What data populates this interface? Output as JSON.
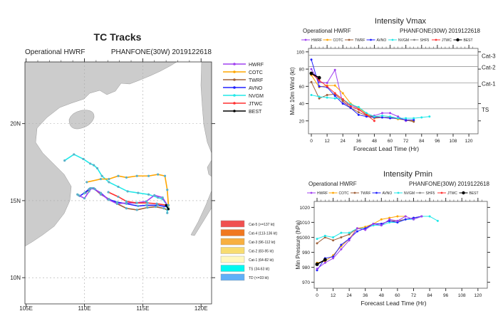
{
  "colors": {
    "HWRF": "#a040f0",
    "COTC": "#ffa500",
    "TWRF": "#a0603a",
    "AVNO": "#2020ff",
    "NVGM": "#20e8e8",
    "SHF5": "#888888",
    "JTWC": "#ff3030",
    "BEST": "#000000",
    "land": "#cccccc"
  },
  "chart_data": [
    {
      "type": "map-track",
      "title": "TC Tracks",
      "subtitle_left": "Operational HWRF",
      "subtitle_right": "PHANFONE(30W) 2019122618",
      "lon_ticks": [
        "105E",
        "110E",
        "115E",
        "120E"
      ],
      "lat_ticks": [
        "20N",
        "15N",
        "10N"
      ],
      "xlim": [
        104.9,
        120.9
      ],
      "ylim": [
        8.3,
        24.0
      ],
      "legend": [
        "HWRF",
        "COTC",
        "TWRF",
        "AVNO",
        "NVGM",
        "JTWC",
        "BEST"
      ],
      "category_legend": [
        {
          "label": "Cat-5 (>=137 kt)",
          "color": "#f05050"
        },
        {
          "label": "Cat-4 (113-136 kt)",
          "color": "#f07820"
        },
        {
          "label": "Cat-3 (96-112 kt)",
          "color": "#f8b040"
        },
        {
          "label": "Cat-2 (83-95 kt)",
          "color": "#f8dc70"
        },
        {
          "label": "Cat-1 (64-82 kt)",
          "color": "#fff8c0"
        },
        {
          "label": "TS (34-63 kt)",
          "color": "#00f8f0"
        },
        {
          "label": "TD (<=33 kt)",
          "color": "#60b0f8"
        }
      ],
      "series": [
        {
          "name": "NVGM",
          "points": [
            [
              117.1,
              14.2
            ],
            [
              117.1,
              14.7
            ],
            [
              116.7,
              15.1
            ],
            [
              116.3,
              15.2
            ],
            [
              115.5,
              15.4
            ],
            [
              114.6,
              15.5
            ],
            [
              113.7,
              15.6
            ],
            [
              112.9,
              15.9
            ],
            [
              112.1,
              16.2
            ],
            [
              111.5,
              16.6
            ],
            [
              111.1,
              17.1
            ],
            [
              110.8,
              17.3
            ],
            [
              110.5,
              17.4
            ],
            [
              109.9,
              17.7
            ],
            [
              109.1,
              18.0
            ],
            [
              108.3,
              17.6
            ]
          ]
        },
        {
          "name": "COTC",
          "points": [
            [
              117.2,
              14.5
            ],
            [
              117.2,
              14.7
            ],
            [
              117.1,
              15.7
            ],
            [
              116.9,
              16.6
            ],
            [
              116.3,
              16.7
            ],
            [
              115.5,
              16.6
            ],
            [
              114.5,
              16.6
            ],
            [
              113.6,
              16.5
            ],
            [
              112.9,
              16.6
            ],
            [
              112.1,
              16.4
            ],
            [
              111.4,
              16.4
            ],
            [
              110.2,
              16.2
            ]
          ]
        },
        {
          "name": "TWRF",
          "points": [
            [
              117.1,
              14.4
            ],
            [
              116.8,
              14.5
            ],
            [
              116.1,
              14.6
            ],
            [
              115.4,
              14.55
            ],
            [
              114.5,
              14.4
            ],
            [
              113.6,
              14.5
            ],
            [
              112.8,
              14.8
            ],
            [
              112.1,
              15.1
            ],
            [
              111.4,
              15.4
            ],
            [
              110.8,
              15.8
            ],
            [
              110.5,
              15.8
            ],
            [
              110.1,
              15.5
            ]
          ]
        },
        {
          "name": "AVNO",
          "points": [
            [
              117.1,
              14.6
            ],
            [
              116.3,
              14.7
            ],
            [
              115.3,
              14.7
            ],
            [
              114.6,
              14.65
            ],
            [
              113.6,
              14.8
            ],
            [
              112.8,
              14.9
            ],
            [
              112.0,
              15.1
            ],
            [
              111.4,
              15.5
            ],
            [
              110.7,
              15.8
            ],
            [
              110.4,
              15.75
            ],
            [
              110.0,
              15.5
            ],
            [
              109.6,
              15.3
            ],
            [
              109.4,
              15.4
            ]
          ]
        },
        {
          "name": "HWRF",
          "points": [
            [
              117.1,
              14.7
            ],
            [
              116.7,
              15.2
            ],
            [
              116.0,
              15.35
            ],
            [
              115.3,
              14.95
            ],
            [
              114.4,
              14.85
            ],
            [
              113.6,
              14.85
            ],
            [
              112.8,
              14.8
            ],
            [
              112.1,
              15.05
            ],
            [
              111.4,
              15.45
            ],
            [
              110.9,
              15.75
            ],
            [
              110.6,
              15.8
            ],
            [
              110.4,
              15.6
            ],
            [
              110.0,
              15.15
            ],
            [
              109.5,
              15.35
            ]
          ]
        },
        {
          "name": "JTWC",
          "points": [
            [
              117.1,
              14.7
            ],
            [
              116.2,
              14.8
            ],
            [
              115.4,
              14.85
            ],
            [
              114.5,
              14.85
            ],
            [
              113.6,
              14.95
            ],
            [
              112.9,
              15.25
            ],
            [
              112.05,
              15.55
            ]
          ]
        },
        {
          "name": "BEST",
          "points": [
            [
              117.2,
              14.45
            ],
            [
              117.0,
              14.7
            ]
          ]
        }
      ]
    },
    {
      "type": "line",
      "title": "Intensity Vmax",
      "subtitle_left": "Operational HWRF",
      "subtitle_right": "PHANFONE(30W) 2019122618",
      "xlabel": "Forecast Lead Time (Hr)",
      "ylabel": "Max 10m Wind (kt)",
      "xlim": [
        0,
        127
      ],
      "ylim": [
        5,
        104
      ],
      "xticks": [
        0,
        12,
        24,
        36,
        48,
        60,
        72,
        84,
        96,
        108,
        120
      ],
      "yticks": [
        20,
        40,
        60,
        80,
        100
      ],
      "thresholds": [
        {
          "label": "Cat-3",
          "value": 96
        },
        {
          "label": "Cat-2",
          "value": 83
        },
        {
          "label": "Cat-1",
          "value": 64
        },
        {
          "label": "TS",
          "value": 34
        }
      ],
      "legend": [
        "HWRF",
        "COTC",
        "TWRF",
        "AVNO",
        "NVGM",
        "SHF5",
        "JTWC",
        "BEST"
      ],
      "series": [
        {
          "name": "HWRF",
          "x": [
            0,
            6,
            12,
            18,
            24,
            30,
            36,
            42,
            48,
            54,
            60,
            66,
            72,
            78
          ],
          "values": [
            80,
            65,
            64,
            79,
            40,
            39,
            34,
            26,
            26,
            29,
            29,
            25,
            20,
            21
          ]
        },
        {
          "name": "COTC",
          "x": [
            0,
            6,
            12,
            18,
            24,
            30,
            36,
            42,
            48,
            54,
            60,
            66,
            72,
            78
          ],
          "values": [
            73,
            59,
            61,
            61,
            52,
            40,
            35,
            28,
            23,
            24,
            24,
            22,
            21,
            20
          ]
        },
        {
          "name": "TWRF",
          "x": [
            0,
            6,
            12,
            18,
            24,
            30,
            36,
            42,
            48,
            54,
            60,
            66,
            72,
            78
          ],
          "values": [
            65,
            46,
            50,
            51,
            43,
            35,
            30,
            26,
            25,
            24,
            24,
            23,
            21,
            19
          ]
        },
        {
          "name": "AVNO",
          "x": [
            0,
            6,
            12,
            18,
            24,
            30,
            36,
            42,
            48,
            54,
            60,
            66,
            72,
            78
          ],
          "values": [
            91,
            60,
            59,
            49,
            40,
            35,
            27,
            25,
            24,
            24,
            23,
            23,
            21,
            21
          ]
        },
        {
          "name": "NVGM",
          "x": [
            0,
            6,
            12,
            18,
            24,
            30,
            36,
            42,
            48,
            54,
            60,
            66,
            72,
            78,
            84,
            90
          ],
          "values": [
            50,
            48,
            47,
            46,
            45,
            39,
            36,
            29,
            25,
            26,
            25,
            23,
            23,
            23,
            24,
            25
          ]
        },
        {
          "name": "JTWC",
          "x": [
            0,
            6,
            12,
            18,
            24,
            30,
            36,
            42,
            48
          ],
          "values": [
            75,
            67,
            60,
            52,
            45,
            37,
            33,
            27,
            20
          ]
        },
        {
          "name": "BEST",
          "x": [
            0,
            6
          ],
          "values": [
            75,
            70
          ]
        }
      ]
    },
    {
      "type": "line",
      "title": "Intensity Pmin",
      "subtitle_left": "Operational HWRF",
      "subtitle_right": "PHANFONE(30W) 2019122618",
      "xlabel": "Forecast Lead Time (Hr)",
      "ylabel": "Min Pressure (hPa)",
      "xlim": [
        0,
        127
      ],
      "ylim": [
        966,
        1024
      ],
      "xticks": [
        0,
        12,
        24,
        36,
        48,
        60,
        72,
        84,
        96,
        108,
        120
      ],
      "yticks": [
        970,
        980,
        990,
        1000,
        1010,
        1020
      ],
      "legend": [
        "HWRF",
        "COTC",
        "TWRF",
        "AVNO",
        "NVGM",
        "SHF5",
        "JTWC",
        "BEST"
      ],
      "series": [
        {
          "name": "TWRF",
          "x": [
            0,
            6,
            12,
            18,
            24,
            30,
            36,
            42,
            48,
            54,
            60,
            66,
            72,
            78
          ],
          "values": [
            996,
            1000,
            998,
            1000,
            1002,
            1006,
            1006,
            1009,
            1009,
            1011,
            1011,
            1012,
            1013,
            1014
          ]
        },
        {
          "name": "NVGM",
          "x": [
            0,
            6,
            12,
            18,
            24,
            30,
            36,
            42,
            48,
            54,
            60,
            66,
            72,
            78,
            84,
            90
          ],
          "values": [
            999,
            1001,
            1000,
            1003,
            1003,
            1006,
            1006,
            1008,
            1008,
            1010,
            1010,
            1012,
            1012,
            1014,
            1014,
            1011
          ]
        },
        {
          "name": "COTC",
          "x": [
            0,
            6,
            12,
            18,
            24,
            30,
            36,
            42,
            48,
            54,
            60,
            66
          ],
          "values": [
            983,
            984,
            988,
            994,
            999,
            1006,
            1007,
            1009,
            1012,
            1013,
            1014,
            1014
          ]
        },
        {
          "name": "AVNO",
          "x": [
            0,
            6,
            12,
            18,
            24,
            30,
            36,
            42,
            48,
            54,
            60,
            66,
            72,
            78
          ],
          "values": [
            978,
            986,
            987,
            995,
            999,
            1004,
            1006,
            1009,
            1009,
            1011,
            1010,
            1012,
            1013,
            1014
          ]
        },
        {
          "name": "HWRF",
          "x": [
            0,
            6,
            12,
            18,
            24,
            30,
            36,
            42,
            48,
            54,
            60,
            66,
            72,
            78
          ],
          "values": [
            979,
            983,
            986,
            992,
            998,
            1006,
            1005,
            1009,
            1008,
            1012,
            1011,
            1014,
            1012,
            1014
          ]
        },
        {
          "name": "BEST",
          "x": [
            0,
            6
          ],
          "values": [
            982,
            985
          ]
        }
      ]
    }
  ]
}
